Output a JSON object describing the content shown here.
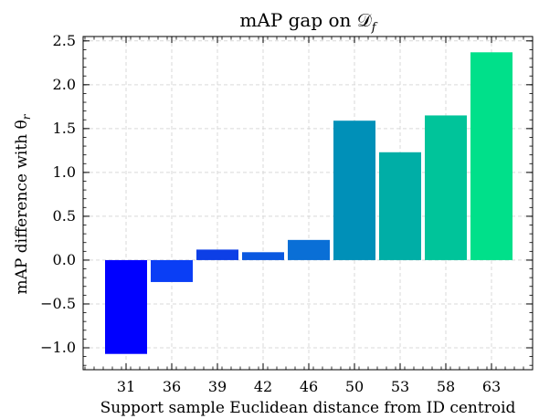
{
  "chart_data": {
    "type": "bar",
    "title": "mAP gap on 𝒟",
    "title_subscript": "f",
    "xlabel": "Support sample Euclidean distance from ID centroid",
    "ylabel": "mAP difference with θ",
    "ylabel_subscript": "r",
    "categories": [
      "31",
      "36",
      "39",
      "42",
      "46",
      "50",
      "53",
      "58",
      "63"
    ],
    "values": [
      -1.07,
      -0.25,
      0.12,
      0.09,
      0.23,
      1.59,
      1.23,
      1.65,
      2.37
    ],
    "bar_colors": [
      "#0000ff",
      "#0a3ef5",
      "#0d3fe6",
      "#0a58e0",
      "#0a6fd6",
      "#0090b8",
      "#00aea6",
      "#00c49a",
      "#00e08a"
    ],
    "ylim": [
      -1.25,
      2.55
    ],
    "yticks": [
      -1.0,
      -0.5,
      0.0,
      0.5,
      1.0,
      1.5,
      2.0,
      2.5
    ],
    "ytick_labels": [
      "−1.0",
      "−0.5",
      "0.0",
      "0.5",
      "1.0",
      "1.5",
      "2.0",
      "2.5"
    ],
    "grid": true,
    "grid_color": "#d9d9d9"
  }
}
